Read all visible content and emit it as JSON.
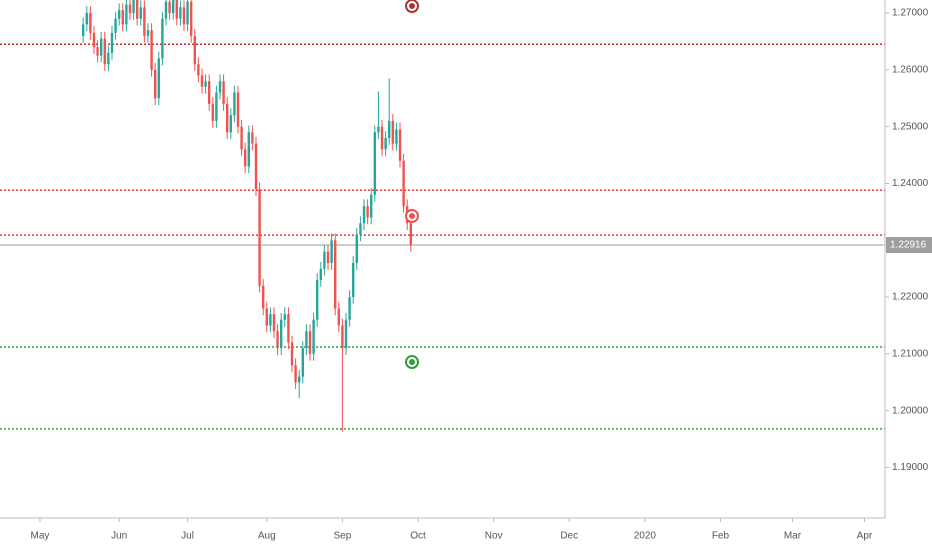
{
  "chart_data": {
    "type": "candlestick",
    "xlim": [
      -11.1,
      234.7
    ],
    "xticks": [
      {
        "value": 0,
        "label": "May"
      },
      {
        "value": 22,
        "label": "Jun"
      },
      {
        "value": 41,
        "label": "Jul"
      },
      {
        "value": 63,
        "label": "Aug"
      },
      {
        "value": 84,
        "label": "Sep"
      },
      {
        "value": 105,
        "label": "Oct"
      },
      {
        "value": 126,
        "label": "Nov"
      },
      {
        "value": 147,
        "label": "Dec"
      },
      {
        "value": 168,
        "label": "2020"
      },
      {
        "value": 189,
        "label": "Feb"
      },
      {
        "value": 209,
        "label": "Mar"
      },
      {
        "value": 229,
        "label": "Apr"
      }
    ],
    "ylim": [
      1.18111,
      1.27229
    ],
    "yticks": [
      {
        "value": 1.19,
        "label": "1.19000"
      },
      {
        "value": 1.2,
        "label": "1.20000"
      },
      {
        "value": 1.21,
        "label": "1.21000"
      },
      {
        "value": 1.22,
        "label": "1.22000"
      },
      {
        "value": 1.24,
        "label": "1.24000"
      },
      {
        "value": 1.25,
        "label": "1.25000"
      },
      {
        "value": 1.26,
        "label": "1.26000"
      },
      {
        "value": 1.27,
        "label": "1.27000"
      }
    ],
    "up_color": "#26a69a",
    "down_color": "#ef5350",
    "x": [
      12,
      13,
      14,
      15,
      16,
      17,
      18,
      19,
      20,
      21,
      22,
      23,
      24,
      25,
      26,
      27,
      28,
      29,
      30,
      31,
      32,
      33,
      34,
      35,
      36,
      37,
      38,
      39,
      40,
      41,
      42,
      43,
      44,
      45,
      46,
      47,
      48,
      49,
      50,
      51,
      52,
      53,
      54,
      55,
      56,
      57,
      58,
      59,
      60,
      61,
      62,
      63,
      64,
      65,
      66,
      67,
      68,
      69,
      70,
      71,
      72,
      73,
      74,
      75,
      76,
      77,
      78,
      79,
      80,
      81,
      82,
      83,
      84,
      85,
      86,
      87,
      88,
      89,
      90,
      91,
      92,
      93,
      94,
      95,
      96,
      97,
      98,
      99,
      100,
      101,
      102,
      103
    ],
    "open": [
      1.266,
      1.268,
      1.27,
      1.2665,
      1.264,
      1.2625,
      1.2655,
      1.261,
      1.263,
      1.2665,
      1.269,
      1.2705,
      1.268,
      1.2715,
      1.27,
      1.273,
      1.269,
      1.271,
      1.266,
      1.267,
      1.26,
      1.255,
      1.262,
      1.269,
      1.272,
      1.27,
      1.2735,
      1.269,
      1.271,
      1.268,
      1.272,
      1.266,
      1.261,
      1.259,
      1.257,
      1.258,
      1.254,
      1.251,
      1.256,
      1.258,
      1.254,
      1.249,
      1.252,
      1.256,
      1.25,
      1.246,
      1.243,
      1.249,
      1.247,
      1.239,
      1.222,
      1.218,
      1.215,
      1.217,
      1.214,
      1.211,
      1.216,
      1.217,
      1.212,
      1.208,
      1.205,
      1.206,
      1.211,
      1.214,
      1.21,
      1.216,
      1.223,
      1.225,
      1.228,
      1.226,
      1.23,
      1.218,
      1.215,
      1.211,
      1.216,
      1.22,
      1.226,
      1.231,
      1.233,
      1.236,
      1.234,
      1.238,
      1.249,
      1.25,
      1.246,
      1.248,
      1.251,
      1.247,
      1.2495,
      1.244,
      1.236,
      1.233
    ],
    "high": [
      1.2692,
      1.2712,
      1.2712,
      1.2677,
      1.2652,
      1.2667,
      1.2667,
      1.2642,
      1.2677,
      1.2702,
      1.2717,
      1.2717,
      1.2727,
      1.2727,
      1.2742,
      1.2742,
      1.2722,
      1.2722,
      1.2682,
      1.2682,
      1.2612,
      1.2632,
      1.2702,
      1.2732,
      1.2732,
      1.2747,
      1.2747,
      1.2722,
      1.2722,
      1.2732,
      1.2732,
      1.2672,
      1.2622,
      1.2602,
      1.2592,
      1.2592,
      1.2552,
      1.2572,
      1.2592,
      1.2592,
      1.2552,
      1.2532,
      1.2572,
      1.2572,
      1.2512,
      1.2472,
      1.2502,
      1.2502,
      1.2482,
      1.2402,
      1.2232,
      1.2192,
      1.2182,
      1.2182,
      1.2152,
      1.2172,
      1.2182,
      1.2182,
      1.2132,
      1.2092,
      1.2072,
      1.2122,
      1.2152,
      1.2152,
      1.2172,
      1.2242,
      1.2262,
      1.2292,
      1.2292,
      1.2312,
      1.2312,
      1.2192,
      1.2162,
      1.2172,
      1.2212,
      1.2272,
      1.2322,
      1.2342,
      1.2372,
      1.2372,
      1.2392,
      1.2502,
      1.2562,
      1.2512,
      1.2492,
      1.2585,
      1.2522,
      1.2507,
      1.2507,
      1.2452,
      1.2372,
      1.2342
    ],
    "low": [
      1.2648,
      1.2668,
      1.2653,
      1.2628,
      1.2613,
      1.2613,
      1.2598,
      1.2598,
      1.2618,
      1.2653,
      1.2678,
      1.2668,
      1.2668,
      1.2688,
      1.2688,
      1.2678,
      1.2678,
      1.2648,
      1.2648,
      1.2588,
      1.2538,
      1.2538,
      1.2608,
      1.2678,
      1.2688,
      1.2688,
      1.2678,
      1.2678,
      1.2668,
      1.2668,
      1.2648,
      1.2598,
      1.2578,
      1.2558,
      1.2558,
      1.2528,
      1.2498,
      1.2498,
      1.2548,
      1.2528,
      1.2478,
      1.2478,
      1.2508,
      1.2488,
      1.2448,
      1.2418,
      1.2418,
      1.2458,
      1.2378,
      1.2208,
      1.2168,
      1.2138,
      1.2138,
      1.2128,
      1.2098,
      1.2098,
      1.2148,
      1.2108,
      1.2068,
      1.2038,
      1.2022,
      1.2048,
      1.2098,
      1.2088,
      1.2088,
      1.2148,
      1.2218,
      1.2238,
      1.2248,
      1.2248,
      1.2168,
      1.2138,
      1.1963,
      1.2098,
      1.2148,
      1.2188,
      1.2248,
      1.2298,
      1.2318,
      1.2328,
      1.2328,
      1.2368,
      1.2478,
      1.2448,
      1.2448,
      1.2468,
      1.2458,
      1.2458,
      1.2428,
      1.2348,
      1.2318,
      1.228
    ],
    "close": [
      1.268,
      1.27,
      1.2665,
      1.264,
      1.2625,
      1.2655,
      1.261,
      1.263,
      1.2665,
      1.269,
      1.2705,
      1.268,
      1.2715,
      1.27,
      1.273,
      1.269,
      1.271,
      1.266,
      1.267,
      1.26,
      1.255,
      1.262,
      1.269,
      1.272,
      1.27,
      1.2735,
      1.269,
      1.271,
      1.268,
      1.272,
      1.266,
      1.261,
      1.259,
      1.257,
      1.258,
      1.254,
      1.251,
      1.256,
      1.258,
      1.254,
      1.249,
      1.252,
      1.256,
      1.25,
      1.246,
      1.243,
      1.249,
      1.247,
      1.239,
      1.222,
      1.218,
      1.215,
      1.217,
      1.214,
      1.211,
      1.216,
      1.217,
      1.212,
      1.208,
      1.205,
      1.206,
      1.211,
      1.214,
      1.21,
      1.216,
      1.223,
      1.225,
      1.228,
      1.226,
      1.23,
      1.218,
      1.215,
      1.211,
      1.216,
      1.22,
      1.226,
      1.231,
      1.233,
      1.236,
      1.234,
      1.238,
      1.249,
      1.25,
      1.246,
      1.248,
      1.251,
      1.247,
      1.2495,
      1.244,
      1.236,
      1.233,
      1.2292
    ],
    "levels": [
      {
        "value": 1.2645,
        "color": "#c62828"
      },
      {
        "value": 1.2388,
        "color": "#e53935"
      },
      {
        "value": 1.2309,
        "color": "#e53935"
      },
      {
        "value": 1.2112,
        "color": "#2e9e3a"
      },
      {
        "value": 1.1968,
        "color": "#2e9e3a"
      }
    ],
    "last_price": {
      "value": 1.22916,
      "label": "1.22916"
    },
    "last_price_color": "#9e9e9e"
  }
}
